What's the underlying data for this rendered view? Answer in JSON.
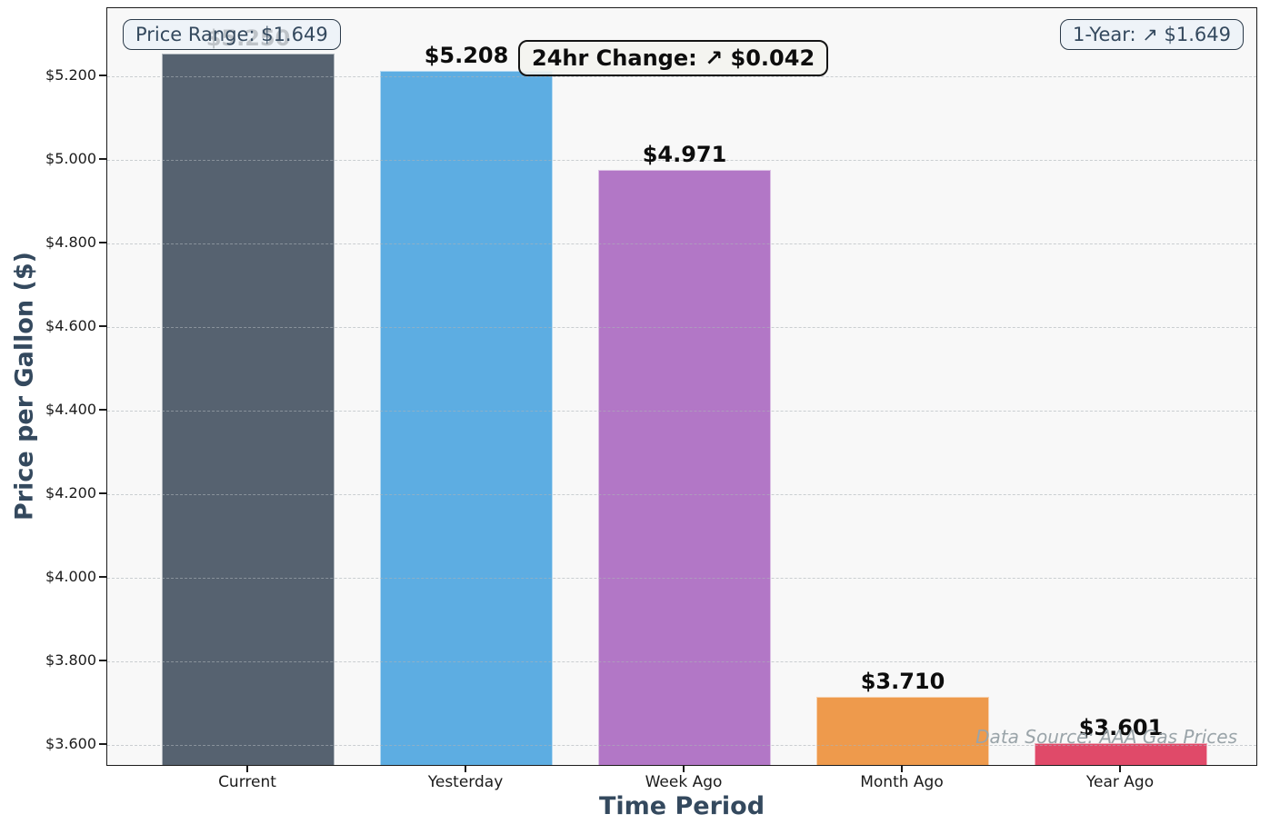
{
  "chart_data": {
    "type": "bar",
    "title": "",
    "xlabel": "Time Period",
    "ylabel": "Price per Gallon ($)",
    "categories": [
      "Current",
      "Yesterday",
      "Week Ago",
      "Month Ago",
      "Year Ago"
    ],
    "values": [
      5.25,
      5.208,
      4.971,
      3.71,
      3.601
    ],
    "bar_labels": [
      "$5.250",
      "$5.208",
      "$4.971",
      "$3.710",
      "$3.601"
    ],
    "bar_colors": [
      "#566270",
      "#5DADE2",
      "#B277C6",
      "#EE9A4C",
      "#E04A69"
    ],
    "ylim": [
      3.548,
      5.363
    ],
    "ytick_values": [
      3.6,
      3.8,
      4.0,
      4.2,
      4.4,
      4.6,
      4.8,
      5.0,
      5.2
    ],
    "ytick_labels": [
      "$3.600",
      "$3.800",
      "$4.000",
      "$4.200",
      "$4.400",
      "$4.600",
      "$4.800",
      "$5.000",
      "$5.200"
    ],
    "grid": "horizontal dashed",
    "legend": "none",
    "plot_background": "#F8F8F8",
    "axis_title_color": "#34495E",
    "annotations": {
      "price_range": "Price Range: $1.649",
      "day_change": "24hr Change: ↗ $0.042",
      "year_change": "1-Year: ↗ $1.649",
      "data_source": "Data Source: AAA Gas Prices"
    }
  }
}
